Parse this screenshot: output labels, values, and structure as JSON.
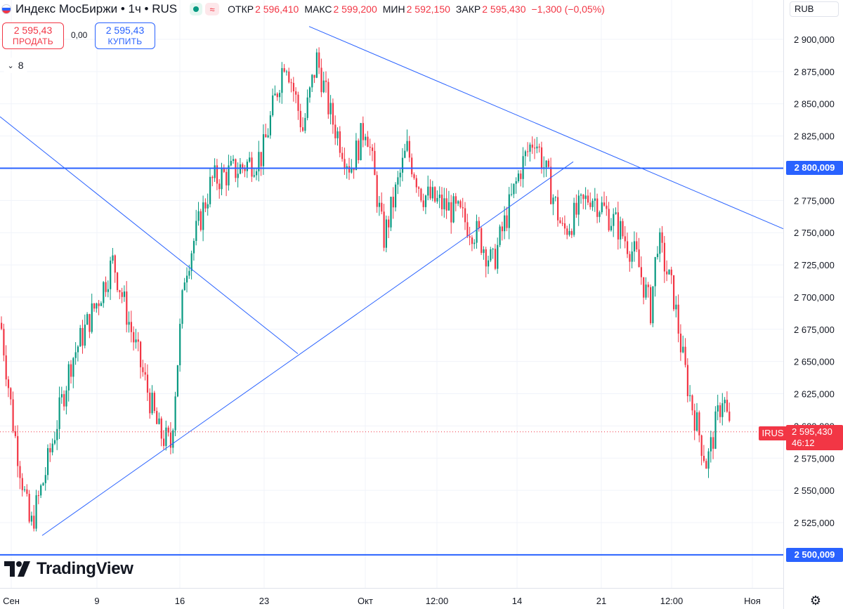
{
  "header": {
    "title": "Индекс МосБиржи • 1ч • RUS",
    "ohlc": [
      {
        "label": "ОТКР",
        "value": "2 596,410"
      },
      {
        "label": "МАКС",
        "value": "2 599,200"
      },
      {
        "label": "МИН",
        "value": "2 592,150"
      },
      {
        "label": "ЗАКР",
        "value": "2 595,430"
      },
      {
        "label": "",
        "value": "−1,300 (−0,05%)"
      }
    ],
    "status_icon": "market-open-dot-icon",
    "wave_icon": "wave-icon"
  },
  "trade": {
    "sell_price": "2 595,43",
    "sell_label": "ПРОДАТЬ",
    "spread": "0,00",
    "buy_price": "2 595,43",
    "buy_label": "КУПИТЬ"
  },
  "indicators": {
    "toggle_icon": "chevron-down-icon",
    "count": "8"
  },
  "currency": "RUB",
  "current_price": {
    "symbol": "IRUS",
    "value": "2 595,430",
    "countdown": "46:12"
  },
  "levels": [
    {
      "value": "2 800,009",
      "price": 2800.009
    },
    {
      "value": "2 500,009",
      "price": 2500.009
    }
  ],
  "logo": {
    "text": "TradingView",
    "icon": "tradingview-logo-icon"
  },
  "settings_icon": "gear-icon",
  "colors": {
    "up": "#089981",
    "down": "#f23645",
    "level": "#2962ff",
    "trend": "#2962ff"
  },
  "chart_data": {
    "type": "candlestick",
    "interval": "1h",
    "ylim": [
      2492,
      2930
    ],
    "yticks": [
      {
        "value": 2900,
        "label": "2 900,000"
      },
      {
        "value": 2875,
        "label": "2 875,000"
      },
      {
        "value": 2850,
        "label": "2 850,000"
      },
      {
        "value": 2825,
        "label": "2 825,000"
      },
      {
        "value": 2775,
        "label": "2 775,000"
      },
      {
        "value": 2750,
        "label": "2 750,000"
      },
      {
        "value": 2725,
        "label": "2 725,000"
      },
      {
        "value": 2700,
        "label": "2 700,000"
      },
      {
        "value": 2675,
        "label": "2 675,000"
      },
      {
        "value": 2650,
        "label": "2 650,000"
      },
      {
        "value": 2625,
        "label": "2 625,000"
      },
      {
        "value": 2600,
        "label": "2 600,000"
      },
      {
        "value": 2575,
        "label": "2 575,000"
      },
      {
        "value": 2550,
        "label": "2 550,000"
      },
      {
        "value": 2525,
        "label": "2 525,000"
      }
    ],
    "xticks": [
      "Сен",
      "9",
      "16",
      "23",
      "Окт",
      "12:00",
      "14",
      "21",
      "12:00",
      "Ноя"
    ],
    "key_points": [
      {
        "price": 2680
      },
      {
        "price": 2600
      },
      {
        "price": 2520
      },
      {
        "price": 2560
      },
      {
        "price": 2650
      },
      {
        "price": 2700
      },
      {
        "price": 2728
      },
      {
        "price": 2665
      },
      {
        "price": 2595
      },
      {
        "price": 2585
      },
      {
        "price": 2720
      },
      {
        "price": 2790
      },
      {
        "price": 2800
      },
      {
        "price": 2810
      },
      {
        "price": 2888
      },
      {
        "price": 2830
      },
      {
        "price": 2885
      },
      {
        "price": 2840
      },
      {
        "price": 2800
      },
      {
        "price": 2835
      },
      {
        "price": 2745
      },
      {
        "price": 2815
      },
      {
        "price": 2780
      },
      {
        "price": 2765
      },
      {
        "price": 2748
      },
      {
        "price": 2725
      },
      {
        "price": 2800
      },
      {
        "price": 2825
      },
      {
        "price": 2775
      },
      {
        "price": 2750
      },
      {
        "price": 2780
      },
      {
        "price": 2755
      },
      {
        "price": 2730
      },
      {
        "price": 2690
      },
      {
        "price": 2745
      },
      {
        "price": 2700
      },
      {
        "price": 2655
      },
      {
        "price": 2625
      },
      {
        "price": 2570
      },
      {
        "price": 2625
      },
      {
        "price": 2595
      }
    ],
    "trend_lines": [
      {
        "from": {
          "price": 2840
        },
        "to": {
          "price": 2656
        }
      },
      {
        "from": {
          "price": 2515
        },
        "to": {
          "price": 2805
        }
      },
      {
        "from": {
          "price": 2910
        },
        "to": {
          "price": 2753
        }
      }
    ]
  }
}
